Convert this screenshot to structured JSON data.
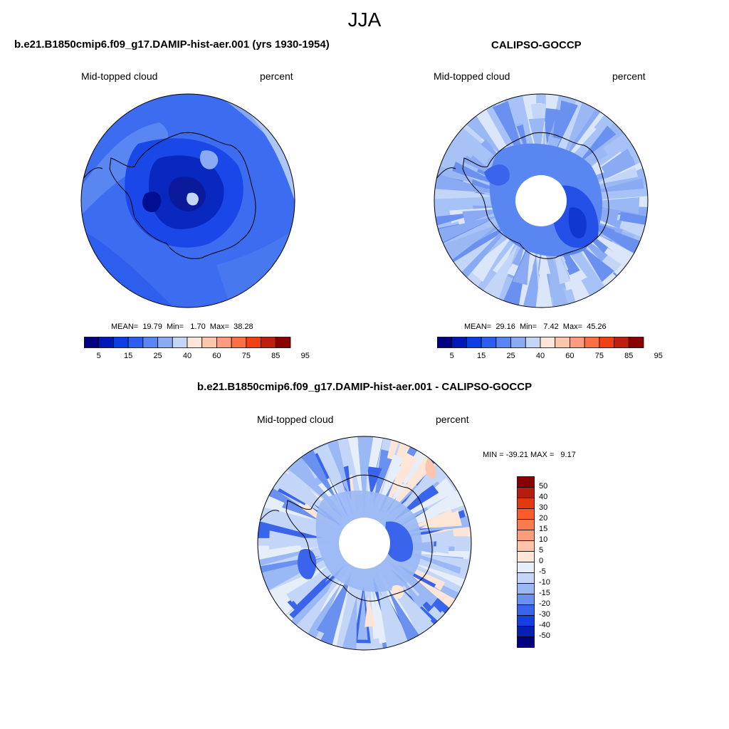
{
  "page": {
    "title": "JJA"
  },
  "panels": {
    "model": {
      "title": "b.e21.B1850cmip6.f09_g17.DAMIP-hist-aer.001 (yrs 1930-1954)",
      "variable": "Mid-topped cloud",
      "units": "percent",
      "stats": "MEAN=  19.79  Min=   1.70  Max=  38.28"
    },
    "obs": {
      "title": "CALIPSO-GOCCP",
      "variable": "Mid-topped cloud",
      "units": "percent",
      "stats": "MEAN=  29.16  Min=   7.42  Max=  45.26"
    },
    "diff": {
      "title": "b.e21.B1850cmip6.f09_g17.DAMIP-hist-aer.001 - CALIPSO-GOCCP",
      "variable": "Mid-topped cloud",
      "units": "percent",
      "stats": "MIN = -39.21 MAX =   9.17"
    }
  },
  "colorbar_abs": {
    "labels": [
      "5",
      "15",
      "25",
      "40",
      "60",
      "75",
      "85",
      "95"
    ],
    "colors": [
      "#000080",
      "#0018b8",
      "#0a3ee6",
      "#2a5ef0",
      "#5a86f2",
      "#8aaaf4",
      "#c4d6f8",
      "#fde6d8",
      "#fcc4aa",
      "#fb9d7a",
      "#fb6f45",
      "#ef4016",
      "#c21e0c",
      "#880000"
    ]
  },
  "colorbar_diff": {
    "labels": [
      "50",
      "40",
      "30",
      "20",
      "15",
      "10",
      "5",
      "0",
      "-5",
      "-10",
      "-15",
      "-20",
      "-30",
      "-40",
      "-50"
    ],
    "colors": [
      "#880000",
      "#b51e0c",
      "#e23a0e",
      "#fb5c28",
      "#fb7b4e",
      "#fb9d7a",
      "#fcc4aa",
      "#fde6d8",
      "#e6eefa",
      "#c4d6f8",
      "#9ab8f4",
      "#6a90f0",
      "#3a64ec",
      "#1440e0",
      "#0620b4",
      "#000080"
    ]
  },
  "maps": {
    "model": {
      "base_color": "#3e6ef0",
      "value_range": [
        1.7,
        38.28
      ],
      "mean": 19.79
    },
    "obs": {
      "base_color": "#a6c2f6",
      "value_range": [
        7.42,
        45.26
      ],
      "mean": 29.16
    },
    "diff": {
      "base_color": "#c4d6f8",
      "value_range": [
        -39.21,
        9.17
      ]
    }
  }
}
